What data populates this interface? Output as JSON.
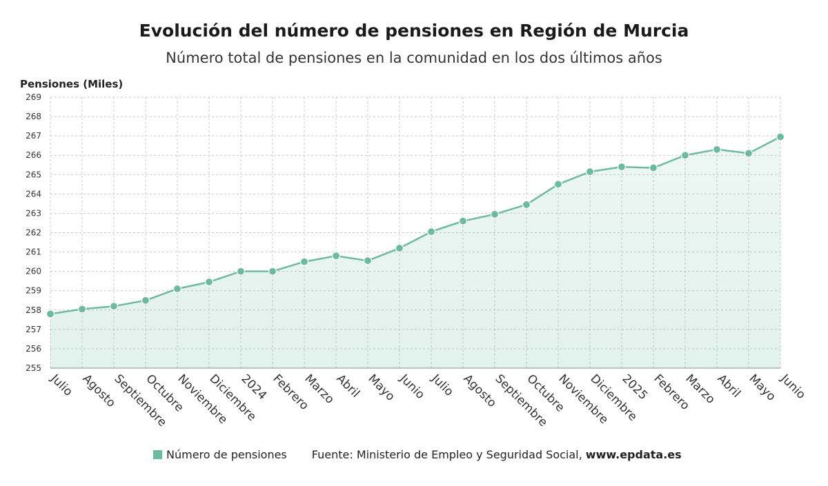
{
  "colors": {
    "series": "#6dbb9f",
    "grid": "#c7c7c7",
    "axis": "#888888"
  },
  "chart_data": {
    "type": "area",
    "title": "Evolución del número de pensiones en Región de Murcia",
    "subtitle": "Número total de pensiones en la comunidad en los dos últimos años",
    "ylabel": "Pensiones (Miles)",
    "ylim": [
      255,
      269
    ],
    "yticks": [
      255,
      256,
      257,
      258,
      259,
      260,
      261,
      262,
      263,
      264,
      265,
      266,
      267,
      268,
      269
    ],
    "grid": true,
    "legend_position": "bottom",
    "categories": [
      "Julio",
      "Agosto",
      "Septiembre",
      "Octubre",
      "Noviembre",
      "Diciembre",
      "2024",
      "Febrero",
      "Marzo",
      "Abril",
      "Mayo",
      "Junio",
      "Julio",
      "Agosto",
      "Septiembre",
      "Octubre",
      "Noviembre",
      "Diciembre",
      "2025",
      "Febrero",
      "Marzo",
      "Abril",
      "Mayo",
      "Junio"
    ],
    "series": [
      {
        "name": "Número de pensiones",
        "values": [
          257.8,
          258.05,
          258.2,
          258.5,
          259.1,
          259.45,
          260.0,
          260.0,
          260.5,
          260.8,
          260.55,
          261.2,
          262.05,
          262.6,
          262.95,
          263.45,
          264.5,
          265.15,
          265.4,
          265.35,
          266.0,
          266.3,
          266.1,
          266.95
        ]
      }
    ]
  },
  "legend": {
    "series_label": "Número de pensiones",
    "source_label": "Fuente: Ministerio de Empleo y Seguridad Social,",
    "source_site": "www.epdata.es"
  }
}
